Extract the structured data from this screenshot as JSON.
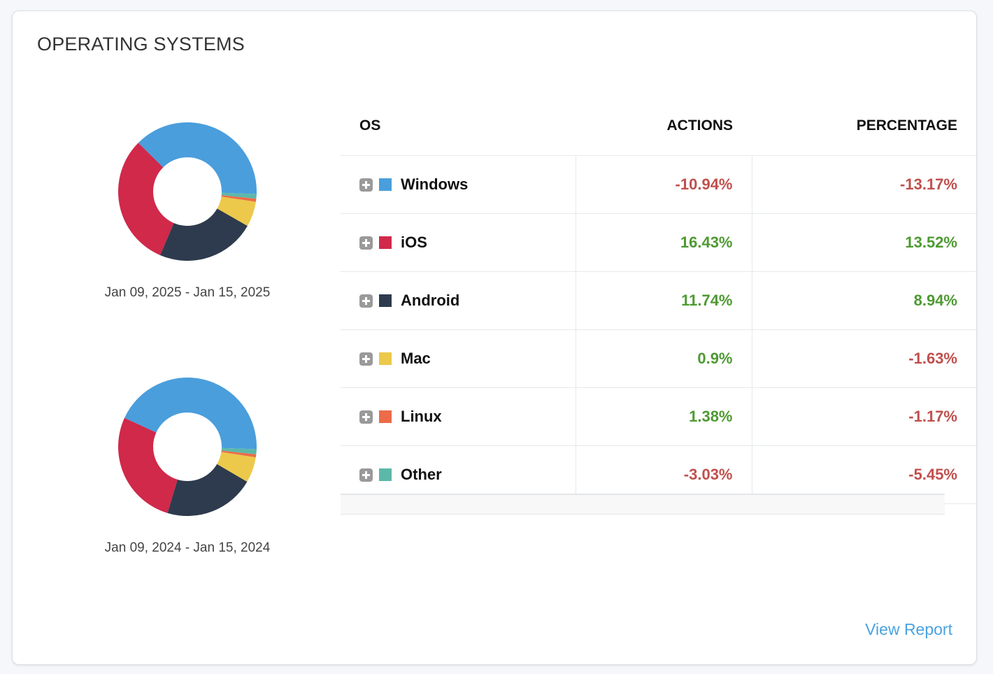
{
  "card": {
    "title": "OPERATING SYSTEMS",
    "view_report_label": "View Report"
  },
  "table": {
    "headers": {
      "os": "OS",
      "actions": "ACTIONS",
      "percentage": "PERCENTAGE"
    },
    "rows": [
      {
        "os": "Windows",
        "color": "#4a9edc",
        "actions": "-10.94%",
        "percentage": "-13.17%"
      },
      {
        "os": "iOS",
        "color": "#d0294a",
        "actions": "16.43%",
        "percentage": "13.52%"
      },
      {
        "os": "Android",
        "color": "#2e3b4e",
        "actions": "11.74%",
        "percentage": "8.94%"
      },
      {
        "os": "Mac",
        "color": "#ecc94b",
        "actions": "0.9%",
        "percentage": "-1.63%"
      },
      {
        "os": "Linux",
        "color": "#ec6b48",
        "actions": "1.38%",
        "percentage": "-1.17%"
      },
      {
        "os": "Other",
        "color": "#5cb8a8",
        "actions": "-3.03%",
        "percentage": "-5.45%"
      }
    ]
  },
  "colors": {
    "negative": "#c0504d",
    "positive": "#4e9a32",
    "link": "#4aa3df"
  },
  "chart_data": [
    {
      "type": "pie",
      "caption": "Jan 09, 2025 - Jan 15, 2025",
      "categories": [
        "Windows",
        "iOS",
        "Android",
        "Mac",
        "Linux",
        "Other"
      ],
      "values": [
        38.1,
        31.0,
        23.2,
        5.9,
        0.7,
        1.1
      ]
    },
    {
      "type": "pie",
      "caption": "Jan 09, 2024 - Jan 15, 2024",
      "categories": [
        "Windows",
        "iOS",
        "Android",
        "Mac",
        "Linux",
        "Other"
      ],
      "values": [
        43.9,
        27.3,
        21.3,
        6.0,
        0.7,
        1.2
      ]
    }
  ]
}
